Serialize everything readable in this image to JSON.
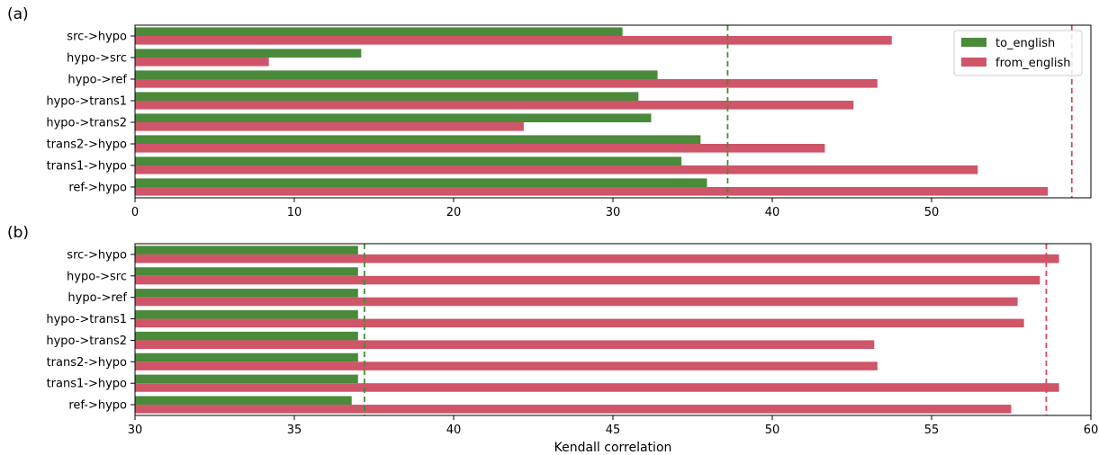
{
  "chart_data": [
    {
      "type": "bar",
      "orientation": "horizontal",
      "panel_label": "(a)",
      "categories": [
        "src->hypo",
        "hypo->src",
        "hypo->ref",
        "hypo->trans1",
        "hypo->trans2",
        "trans2->hypo",
        "trans1->hypo",
        "ref->hypo"
      ],
      "series": [
        {
          "name": "to_english",
          "color": "#4a8a3a",
          "values": [
            30.6,
            14.2,
            32.8,
            31.6,
            32.4,
            35.5,
            34.3,
            35.9
          ]
        },
        {
          "name": "from_english",
          "color": "#cf5568",
          "values": [
            47.5,
            8.4,
            46.6,
            45.1,
            24.4,
            43.3,
            52.9,
            57.3
          ]
        }
      ],
      "reference_lines": [
        {
          "series": "to_english",
          "value": 37.2,
          "style": "dashed",
          "color": "#4a8a3a"
        },
        {
          "series": "from_english",
          "value": 58.8,
          "style": "dashed",
          "color": "#d9475f"
        }
      ],
      "xlim": [
        0,
        60
      ],
      "xticks": [
        0,
        10,
        20,
        30,
        40,
        50
      ],
      "xlabel": "",
      "legend": {
        "position": "top-right",
        "entries": [
          "to_english",
          "from_english"
        ]
      },
      "grid": false
    },
    {
      "type": "bar",
      "orientation": "horizontal",
      "panel_label": "(b)",
      "categories": [
        "src->hypo",
        "hypo->src",
        "hypo->ref",
        "hypo->trans1",
        "hypo->trans2",
        "trans2->hypo",
        "trans1->hypo",
        "ref->hypo"
      ],
      "series": [
        {
          "name": "to_english",
          "color": "#4a8a3a",
          "values": [
            37.0,
            37.0,
            37.0,
            37.0,
            37.0,
            37.0,
            37.0,
            36.8
          ]
        },
        {
          "name": "from_english",
          "color": "#cf5568",
          "values": [
            59.0,
            58.4,
            57.7,
            57.9,
            53.2,
            53.3,
            59.0,
            57.5
          ]
        }
      ],
      "reference_lines": [
        {
          "series": "to_english",
          "value": 37.2,
          "style": "dashed",
          "color": "#4a8a3a"
        },
        {
          "series": "from_english",
          "value": 58.6,
          "style": "dashed",
          "color": "#d9475f"
        }
      ],
      "xlim": [
        30,
        60
      ],
      "xticks": [
        30,
        35,
        40,
        45,
        50,
        55,
        60
      ],
      "xlabel": "Kendall correlation",
      "grid": false
    }
  ]
}
